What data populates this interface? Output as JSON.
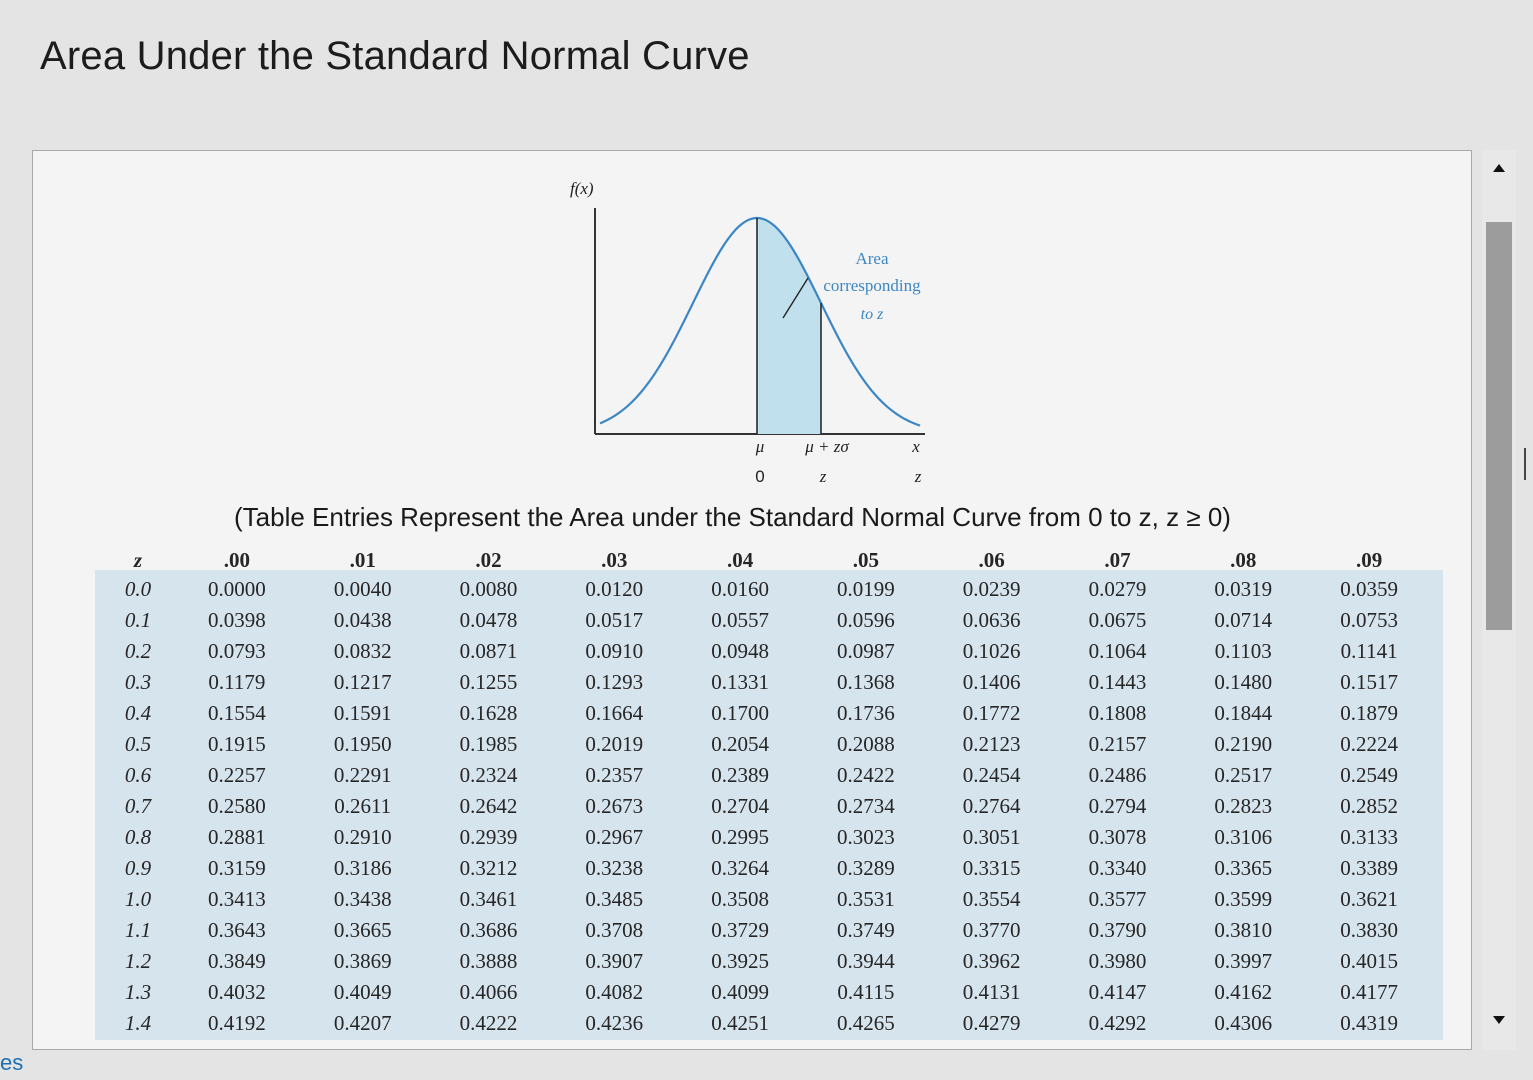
{
  "title": "Area Under the Standard Normal Curve",
  "figure": {
    "y_label": "f(x)",
    "area_label_lines": [
      "Area",
      "corresponding",
      "to z"
    ],
    "x_axis_top": [
      "μ",
      "μ + zσ",
      "x"
    ],
    "x_axis_bottom": [
      "0",
      "z",
      "z"
    ],
    "fill_color": "#bfe0ec",
    "curve_color": "#3d86c4"
  },
  "caption": "(Table Entries Represent the Area under the Standard Normal Curve from 0 to z, z ≥ 0)",
  "table": {
    "headers": [
      "z",
      ".00",
      ".01",
      ".02",
      ".03",
      ".04",
      ".05",
      ".06",
      ".07",
      ".08",
      ".09"
    ],
    "rows": [
      [
        "0.0",
        "0.0000",
        "0.0040",
        "0.0080",
        "0.0120",
        "0.0160",
        "0.0199",
        "0.0239",
        "0.0279",
        "0.0319",
        "0.0359"
      ],
      [
        "0.1",
        "0.0398",
        "0.0438",
        "0.0478",
        "0.0517",
        "0.0557",
        "0.0596",
        "0.0636",
        "0.0675",
        "0.0714",
        "0.0753"
      ],
      [
        "0.2",
        "0.0793",
        "0.0832",
        "0.0871",
        "0.0910",
        "0.0948",
        "0.0987",
        "0.1026",
        "0.1064",
        "0.1103",
        "0.1141"
      ],
      [
        "0.3",
        "0.1179",
        "0.1217",
        "0.1255",
        "0.1293",
        "0.1331",
        "0.1368",
        "0.1406",
        "0.1443",
        "0.1480",
        "0.1517"
      ],
      [
        "0.4",
        "0.1554",
        "0.1591",
        "0.1628",
        "0.1664",
        "0.1700",
        "0.1736",
        "0.1772",
        "0.1808",
        "0.1844",
        "0.1879"
      ],
      [
        "0.5",
        "0.1915",
        "0.1950",
        "0.1985",
        "0.2019",
        "0.2054",
        "0.2088",
        "0.2123",
        "0.2157",
        "0.2190",
        "0.2224"
      ],
      [
        "0.6",
        "0.2257",
        "0.2291",
        "0.2324",
        "0.2357",
        "0.2389",
        "0.2422",
        "0.2454",
        "0.2486",
        "0.2517",
        "0.2549"
      ],
      [
        "0.7",
        "0.2580",
        "0.2611",
        "0.2642",
        "0.2673",
        "0.2704",
        "0.2734",
        "0.2764",
        "0.2794",
        "0.2823",
        "0.2852"
      ],
      [
        "0.8",
        "0.2881",
        "0.2910",
        "0.2939",
        "0.2967",
        "0.2995",
        "0.3023",
        "0.3051",
        "0.3078",
        "0.3106",
        "0.3133"
      ],
      [
        "0.9",
        "0.3159",
        "0.3186",
        "0.3212",
        "0.3238",
        "0.3264",
        "0.3289",
        "0.3315",
        "0.3340",
        "0.3365",
        "0.3389"
      ],
      [
        "1.0",
        "0.3413",
        "0.3438",
        "0.3461",
        "0.3485",
        "0.3508",
        "0.3531",
        "0.3554",
        "0.3577",
        "0.3599",
        "0.3621"
      ],
      [
        "1.1",
        "0.3643",
        "0.3665",
        "0.3686",
        "0.3708",
        "0.3729",
        "0.3749",
        "0.3770",
        "0.3790",
        "0.3810",
        "0.3830"
      ],
      [
        "1.2",
        "0.3849",
        "0.3869",
        "0.3888",
        "0.3907",
        "0.3925",
        "0.3944",
        "0.3962",
        "0.3980",
        "0.3997",
        "0.4015"
      ],
      [
        "1.3",
        "0.4032",
        "0.4049",
        "0.4066",
        "0.4082",
        "0.4099",
        "0.4115",
        "0.4131",
        "0.4147",
        "0.4162",
        "0.4177"
      ],
      [
        "1.4",
        "0.4192",
        "0.4207",
        "0.4222",
        "0.4236",
        "0.4251",
        "0.4265",
        "0.4279",
        "0.4292",
        "0.4306",
        "0.4319"
      ]
    ]
  },
  "scrollbar": {
    "up_icon": "scroll-up-arrow-icon",
    "down_icon": "scroll-down-arrow-icon"
  },
  "edge_text": "es"
}
